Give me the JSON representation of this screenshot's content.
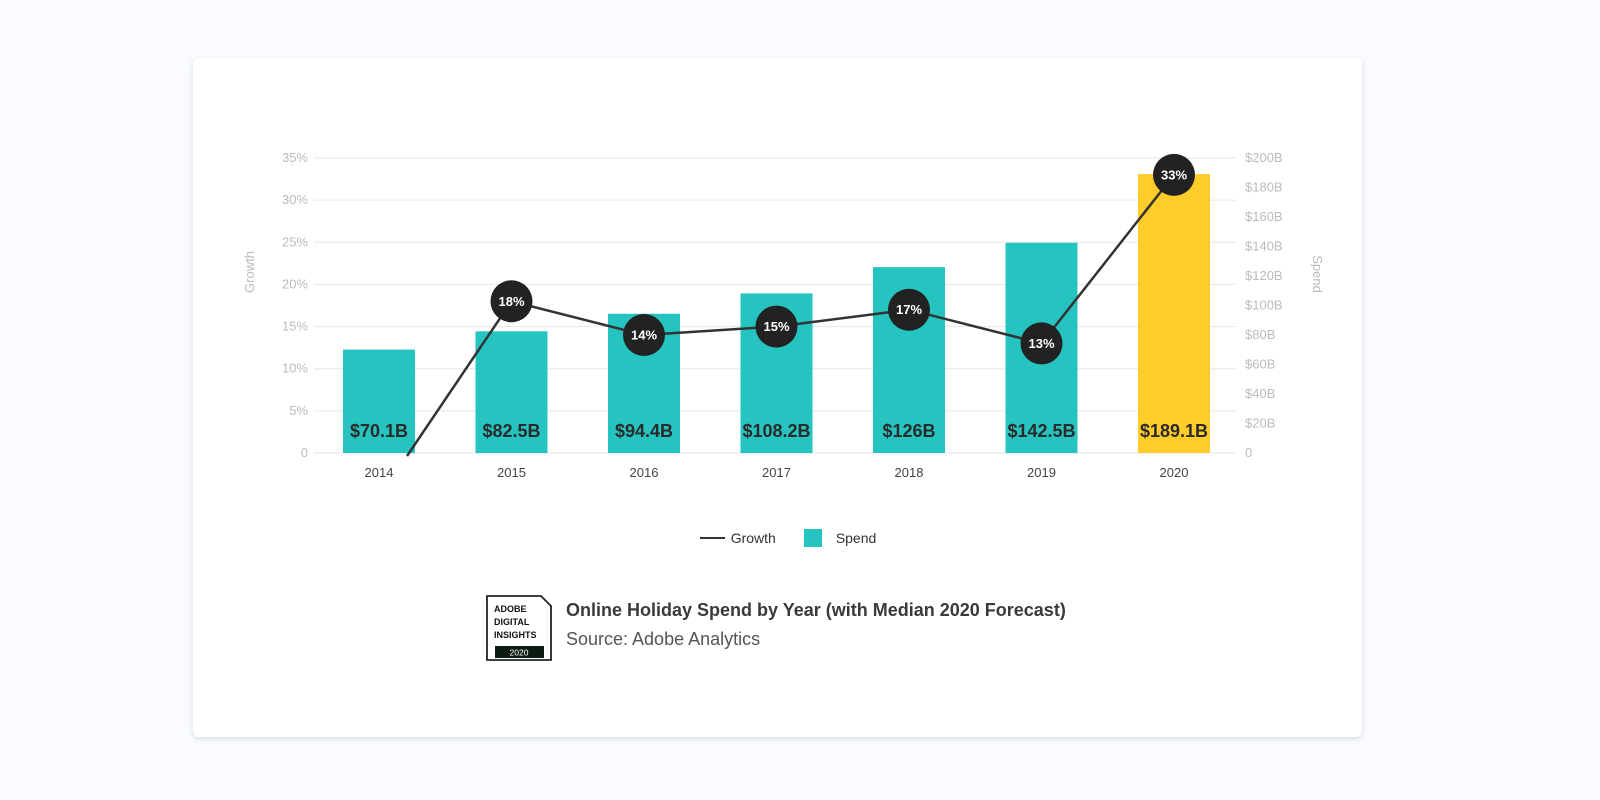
{
  "chart_data": {
    "type": "bar",
    "categories": [
      "2014",
      "2015",
      "2016",
      "2017",
      "2018",
      "2019",
      "2020"
    ],
    "series": [
      {
        "name": "Spend",
        "type": "bar",
        "axis": "right",
        "values": [
          70.1,
          82.5,
          94.4,
          108.2,
          126,
          142.5,
          189.1
        ],
        "labels": [
          "$70.1B",
          "$82.5B",
          "$94.4B",
          "$108.2B",
          "$126B",
          "$142.5B",
          "$189.1B"
        ],
        "colors": [
          "#26c4c1",
          "#26c4c1",
          "#26c4c1",
          "#26c4c1",
          "#26c4c1",
          "#26c4c1",
          "#ffcc29"
        ]
      },
      {
        "name": "Growth",
        "type": "line",
        "axis": "left",
        "values": [
          null,
          18,
          14,
          15,
          17,
          13,
          33
        ],
        "labels": [
          "",
          "18%",
          "14%",
          "15%",
          "17%",
          "13%",
          "33%"
        ],
        "color": "#333333"
      }
    ],
    "y_left": {
      "label": "Growth",
      "range": [
        0,
        35
      ],
      "ticks": [
        "0",
        "5%",
        "10%",
        "15%",
        "20%",
        "25%",
        "30%",
        "35%"
      ]
    },
    "y_right": {
      "label": "Spend",
      "range": [
        0,
        200
      ],
      "ticks": [
        "0",
        "$20B",
        "$40B",
        "$60B",
        "$80B",
        "$100B",
        "$120B",
        "$140B",
        "$160B",
        "$180B",
        "$200B"
      ]
    },
    "grid": true,
    "legend": "bottom-center",
    "title": "Online Holiday Spend by Year (with Median 2020 Forecast)",
    "source": "Source: Adobe Analytics"
  },
  "legend": {
    "growth_label": "Growth",
    "spend_label": "Spend"
  },
  "logo": {
    "line1": "ADOBE",
    "line2": "DIGITAL",
    "line3": "INSIGHTS",
    "year": "2020"
  },
  "colors": {
    "spend": "#26c4c1",
    "forecast": "#ffcc29",
    "growth": "#333333",
    "grid": "#e6e6e6",
    "axis_text": "#bbbbbb"
  }
}
